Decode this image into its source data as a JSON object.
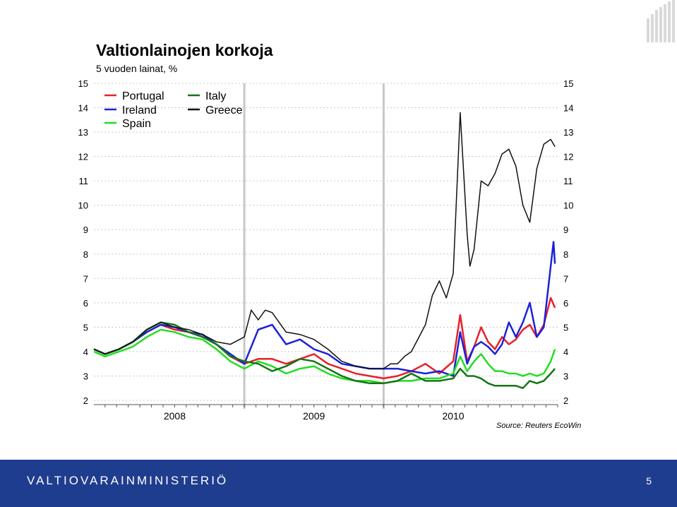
{
  "title": "Valtionlainojen korkoja",
  "subtitle": "5 vuoden lainat, %",
  "source": "Source: Reuters EcoWin",
  "footer": {
    "organization": "VALTIOVARAINMINISTERIÖ",
    "page_number": "5"
  },
  "colors": {
    "Portugal": "#e8202a",
    "Ireland": "#1a22d8",
    "Spain": "#22dd22",
    "Italy": "#157515",
    "Greece": "#111111",
    "footer": "#1f3d8f",
    "logo": "#d9d9d9"
  },
  "chart_data": {
    "type": "line",
    "title": "Valtionlainojen korkoja",
    "subtitle": "5 vuoden lainat, %",
    "xlabel": "",
    "ylabel": "",
    "ylim": [
      2,
      15
    ],
    "yticks": [
      "2",
      "3",
      "4",
      "5",
      "6",
      "7",
      "8",
      "9",
      "10",
      "11",
      "12",
      "13",
      "14",
      "15"
    ],
    "xlim": [
      2007.42,
      2010.75
    ],
    "xticks": [
      {
        "label": "2008",
        "x": 2008.0
      },
      {
        "label": "2009",
        "x": 2009.0
      },
      {
        "label": "2010",
        "x": 2010.0
      }
    ],
    "year_dividers": [
      2008.5,
      2009.5
    ],
    "grid": true,
    "legend_position": "top-left",
    "series": [
      {
        "name": "Portugal",
        "x": [
          2007.42,
          2007.5,
          2007.6,
          2007.7,
          2007.8,
          2007.9,
          2008.0,
          2008.1,
          2008.2,
          2008.3,
          2008.4,
          2008.5,
          2008.6,
          2008.7,
          2008.8,
          2008.9,
          2009.0,
          2009.1,
          2009.2,
          2009.3,
          2009.4,
          2009.5,
          2009.6,
          2009.7,
          2009.8,
          2009.9,
          2010.0,
          2010.05,
          2010.1,
          2010.15,
          2010.2,
          2010.25,
          2010.3,
          2010.35,
          2010.4,
          2010.45,
          2010.5,
          2010.55,
          2010.6,
          2010.65,
          2010.7,
          2010.73
        ],
        "values": [
          4.1,
          3.9,
          4.1,
          4.4,
          4.8,
          5.1,
          4.9,
          4.8,
          4.6,
          4.3,
          3.8,
          3.5,
          3.7,
          3.7,
          3.5,
          3.7,
          3.9,
          3.5,
          3.3,
          3.1,
          3.0,
          2.9,
          3.0,
          3.2,
          3.5,
          3.1,
          3.6,
          5.5,
          3.6,
          4.2,
          5.0,
          4.4,
          4.1,
          4.6,
          4.3,
          4.5,
          4.9,
          5.1,
          4.6,
          5.1,
          6.2,
          5.8
        ]
      },
      {
        "name": "Ireland",
        "x": [
          2007.42,
          2007.5,
          2007.6,
          2007.7,
          2007.8,
          2007.9,
          2008.0,
          2008.1,
          2008.2,
          2008.3,
          2008.4,
          2008.5,
          2008.6,
          2008.7,
          2008.8,
          2008.9,
          2009.0,
          2009.1,
          2009.2,
          2009.3,
          2009.4,
          2009.5,
          2009.6,
          2009.7,
          2009.8,
          2009.9,
          2010.0,
          2010.05,
          2010.1,
          2010.15,
          2010.2,
          2010.25,
          2010.3,
          2010.35,
          2010.4,
          2010.45,
          2010.5,
          2010.55,
          2010.6,
          2010.65,
          2010.7,
          2010.72,
          2010.73
        ],
        "values": [
          4.1,
          3.9,
          4.1,
          4.4,
          4.8,
          5.1,
          5.0,
          4.8,
          4.7,
          4.3,
          3.9,
          3.5,
          4.9,
          5.1,
          4.3,
          4.5,
          4.1,
          3.9,
          3.5,
          3.4,
          3.3,
          3.3,
          3.3,
          3.2,
          3.1,
          3.2,
          3.0,
          4.8,
          3.5,
          4.2,
          4.4,
          4.2,
          3.9,
          4.3,
          5.2,
          4.6,
          5.2,
          6.0,
          4.6,
          5.0,
          7.5,
          8.5,
          7.6
        ]
      },
      {
        "name": "Spain",
        "x": [
          2007.42,
          2007.5,
          2007.6,
          2007.7,
          2007.8,
          2007.9,
          2008.0,
          2008.1,
          2008.2,
          2008.3,
          2008.4,
          2008.5,
          2008.6,
          2008.7,
          2008.8,
          2008.9,
          2009.0,
          2009.1,
          2009.2,
          2009.3,
          2009.4,
          2009.5,
          2009.6,
          2009.7,
          2009.8,
          2009.9,
          2010.0,
          2010.05,
          2010.1,
          2010.15,
          2010.2,
          2010.25,
          2010.3,
          2010.35,
          2010.4,
          2010.45,
          2010.5,
          2010.55,
          2010.6,
          2010.65,
          2010.7,
          2010.73
        ],
        "values": [
          4.0,
          3.8,
          4.0,
          4.2,
          4.6,
          4.9,
          4.8,
          4.6,
          4.5,
          4.1,
          3.6,
          3.3,
          3.6,
          3.4,
          3.1,
          3.3,
          3.4,
          3.1,
          2.9,
          2.8,
          2.8,
          2.7,
          2.8,
          2.8,
          2.9,
          2.9,
          3.1,
          3.8,
          3.2,
          3.6,
          3.9,
          3.5,
          3.2,
          3.2,
          3.1,
          3.1,
          3.0,
          3.1,
          3.0,
          3.1,
          3.6,
          4.1
        ]
      },
      {
        "name": "Italy",
        "x": [
          2007.42,
          2007.5,
          2007.6,
          2007.7,
          2007.8,
          2007.9,
          2008.0,
          2008.1,
          2008.2,
          2008.3,
          2008.4,
          2008.5,
          2008.6,
          2008.7,
          2008.8,
          2008.9,
          2009.0,
          2009.1,
          2009.2,
          2009.3,
          2009.4,
          2009.5,
          2009.6,
          2009.7,
          2009.8,
          2009.9,
          2010.0,
          2010.05,
          2010.1,
          2010.15,
          2010.2,
          2010.25,
          2010.3,
          2010.35,
          2010.4,
          2010.45,
          2010.5,
          2010.55,
          2010.6,
          2010.65,
          2010.7,
          2010.73
        ],
        "values": [
          4.1,
          3.9,
          4.1,
          4.4,
          4.9,
          5.2,
          5.1,
          4.8,
          4.6,
          4.3,
          3.8,
          3.6,
          3.5,
          3.2,
          3.4,
          3.7,
          3.6,
          3.3,
          3.0,
          2.8,
          2.7,
          2.7,
          2.8,
          3.1,
          2.8,
          2.8,
          2.9,
          3.3,
          3.0,
          3.0,
          2.9,
          2.7,
          2.6,
          2.6,
          2.6,
          2.6,
          2.5,
          2.8,
          2.7,
          2.8,
          3.1,
          3.3
        ]
      },
      {
        "name": "Greece",
        "x": [
          2007.42,
          2007.5,
          2007.6,
          2007.7,
          2007.8,
          2007.9,
          2008.0,
          2008.1,
          2008.2,
          2008.3,
          2008.4,
          2008.5,
          2008.55,
          2008.6,
          2008.65,
          2008.7,
          2008.8,
          2008.9,
          2009.0,
          2009.1,
          2009.2,
          2009.3,
          2009.4,
          2009.5,
          2009.55,
          2009.6,
          2009.65,
          2009.7,
          2009.8,
          2009.85,
          2009.9,
          2009.95,
          2010.0,
          2010.05,
          2010.1,
          2010.12,
          2010.15,
          2010.2,
          2010.25,
          2010.3,
          2010.35,
          2010.4,
          2010.45,
          2010.5,
          2010.55,
          2010.6,
          2010.65,
          2010.7,
          2010.72,
          2010.73
        ],
        "values": [
          4.1,
          3.9,
          4.1,
          4.4,
          4.9,
          5.2,
          5.0,
          4.9,
          4.7,
          4.4,
          4.3,
          4.6,
          5.7,
          5.3,
          5.7,
          5.6,
          4.8,
          4.7,
          4.5,
          4.1,
          3.6,
          3.4,
          3.3,
          3.3,
          3.5,
          3.5,
          3.8,
          4.0,
          5.1,
          6.3,
          6.9,
          6.2,
          7.2,
          13.8,
          8.8,
          7.5,
          8.2,
          11.0,
          10.8,
          11.3,
          12.1,
          12.3,
          11.6,
          10.0,
          9.3,
          11.5,
          12.5,
          12.7,
          12.5,
          12.4
        ]
      }
    ]
  }
}
